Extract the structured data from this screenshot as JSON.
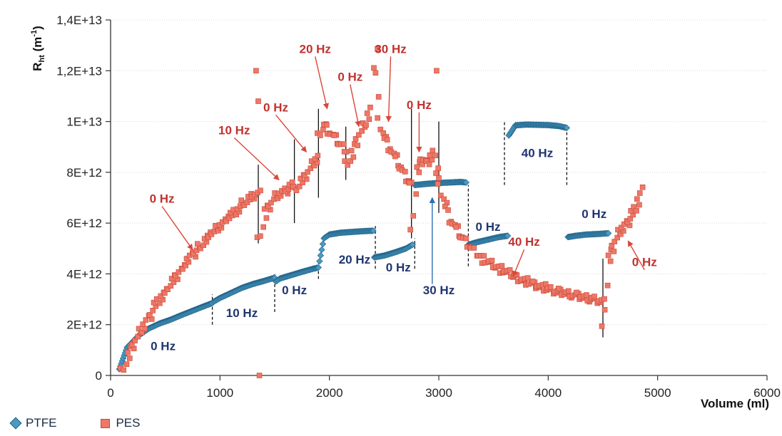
{
  "chart_data": {
    "type": "scatter",
    "xlabel": "Volume (ml)",
    "ylabel_main": "R",
    "ylabel_sub": "ht",
    "ylabel_unit_open": " (m",
    "ylabel_unit_sup": "-1",
    "ylabel_unit_close": ")",
    "xlim": [
      0,
      6000
    ],
    "ylim": [
      0,
      14000000000000.0
    ],
    "x_ticks": [
      0,
      1000,
      2000,
      3000,
      4000,
      5000,
      6000
    ],
    "x_tick_labels": [
      "0",
      "1000",
      "2000",
      "3000",
      "4000",
      "5000",
      "6000"
    ],
    "y_ticks": [
      0,
      2000000000000.0,
      4000000000000.0,
      6000000000000.0,
      8000000000000.0,
      10000000000000.0,
      12000000000000.0,
      14000000000000.0
    ],
    "y_tick_labels": [
      "0",
      "2E+12",
      "4E+12",
      "6E+12",
      "8E+12",
      "1E+13",
      "1,2E+13",
      "1,4E+13"
    ],
    "grid": "horizontal",
    "legend_position": "bottom-left",
    "series": [
      {
        "name": "PTFE",
        "marker": "diamond",
        "color": "#4a9bc4",
        "segments": [
          {
            "x": [
              80,
              150,
              250,
              350,
              450,
              550,
              650,
              750,
              850,
              930
            ],
            "y": [
              250000000000.0,
              1100000000000.0,
              1550000000000.0,
              1850000000000.0,
              2050000000000.0,
              2200000000000.0,
              2380000000000.0,
              2550000000000.0,
              2720000000000.0,
              2850000000000.0
            ]
          },
          {
            "x": [
              940,
              1000,
              1100,
              1200,
              1300,
              1400,
              1500
            ],
            "y": [
              2900000000000.0,
              3050000000000.0,
              3250000000000.0,
              3450000000000.0,
              3600000000000.0,
              3720000000000.0,
              3850000000000.0
            ]
          },
          {
            "x": [
              1510,
              1550,
              1650,
              1750,
              1850,
              1900
            ],
            "y": [
              3700000000000.0,
              3820000000000.0,
              3950000000000.0,
              4080000000000.0,
              4200000000000.0,
              4250000000000.0
            ]
          },
          {
            "x": [
              1910,
              1950,
              2000,
              2100,
              2200,
              2300,
              2400
            ],
            "y": [
              4500000000000.0,
              5400000000000.0,
              5550000000000.0,
              5620000000000.0,
              5650000000000.0,
              5680000000000.0,
              5700000000000.0
            ]
          },
          {
            "x": [
              2410,
              2500,
              2600,
              2700,
              2760
            ],
            "y": [
              4650000000000.0,
              4720000000000.0,
              4850000000000.0,
              5000000000000.0,
              5150000000000.0
            ]
          },
          {
            "x": [
              2780,
              2900,
              3000,
              3100,
              3200,
              3250
            ],
            "y": [
              7500000000000.0,
              7550000000000.0,
              7580000000000.0,
              7600000000000.0,
              7620000000000.0,
              7600000000000.0
            ]
          },
          {
            "x": [
              3270,
              3350,
              3450,
              3550,
              3630
            ],
            "y": [
              5150000000000.0,
              5250000000000.0,
              5350000000000.0,
              5450000000000.0,
              5500000000000.0
            ]
          },
          {
            "x": [
              3640,
              3700,
              3800,
              3900,
              4000,
              4100,
              4170
            ],
            "y": [
              9450000000000.0,
              9850000000000.0,
              9880000000000.0,
              9870000000000.0,
              9860000000000.0,
              9820000000000.0,
              9750000000000.0
            ]
          },
          {
            "x": [
              4180,
              4250,
              4350,
              4450,
              4550
            ],
            "y": [
              5450000000000.0,
              5500000000000.0,
              5550000000000.0,
              5570000000000.0,
              5600000000000.0
            ]
          }
        ]
      },
      {
        "name": "PES",
        "marker": "square",
        "color": "#ee7766",
        "segments": [
          {
            "x": [
              110,
              200,
              300,
              400,
              500,
              600,
              700,
              800,
              900,
              1000,
              1100,
              1200,
              1300,
              1350
            ],
            "y": [
              150000000000.0,
              1200000000000.0,
              1900000000000.0,
              2700000000000.0,
              3300000000000.0,
              3900000000000.0,
              4500000000000.0,
              5000000000000.0,
              5500000000000.0,
              5900000000000.0,
              6300000000000.0,
              6700000000000.0,
              7100000000000.0,
              7200000000000.0
            ]
          },
          {
            "x": [
              1360,
              1420,
              1500,
              1600,
              1680
            ],
            "y": [
              5300000000000.0,
              6500000000000.0,
              7000000000000.0,
              7300000000000.0,
              7500000000000.0
            ]
          },
          {
            "x": [
              1690,
              1750,
              1850,
              1900
            ],
            "y": [
              7300000000000.0,
              7700000000000.0,
              8300000000000.0,
              8600000000000.0
            ]
          },
          {
            "x": [
              1910,
              1950,
              2000,
              2100,
              2150
            ],
            "y": [
              9400000000000.0,
              9900000000000.0,
              9600000000000.0,
              9100000000000.0,
              8900000000000.0
            ]
          },
          {
            "x": [
              2160,
              2200,
              2260,
              2320,
              2380,
              2400,
              2420,
              2450
            ],
            "y": [
              8300000000000.0,
              8600000000000.0,
              9400000000000.0,
              9800000000000.0,
              10500000000000.0,
              12000000000000.0,
              13000000000000.0,
              11000000000000.0
            ]
          },
          {
            "x": [
              2460,
              2500,
              2600,
              2700,
              2750
            ],
            "y": [
              10000000000000.0,
              9400000000000.0,
              8600000000000.0,
              7800000000000.0,
              7500000000000.0
            ]
          },
          {
            "x": [
              2760,
              2800,
              2850,
              2900,
              2950,
              3000
            ],
            "y": [
              5600000000000.0,
              8000000000000.0,
              8600000000000.0,
              8300000000000.0,
              8800000000000.0,
              7800000000000.0
            ]
          },
          {
            "x": [
              3010,
              3100,
              3200,
              3300,
              3400,
              3600,
              3800,
              4000,
              4200,
              4400,
              4500
            ],
            "y": [
              7400000000000.0,
              6200000000000.0,
              5500000000000.0,
              5000000000000.0,
              4600000000000.0,
              4100000000000.0,
              3700000000000.0,
              3400000000000.0,
              3200000000000.0,
              3000000000000.0,
              2900000000000.0
            ]
          },
          {
            "x": [
              4510,
              4550,
              4600,
              4650,
              4700,
              4750,
              4800,
              4850
            ],
            "y": [
              1800000000000.0,
              4500000000000.0,
              5200000000000.0,
              5600000000000.0,
              5900000000000.0,
              6200000000000.0,
              6600000000000.0,
              7300000000000.0
            ]
          }
        ],
        "outliers": {
          "x": [
            1330,
            1350,
            2980,
            1360
          ],
          "y": [
            12000000000000.0,
            10800000000000.0,
            12000000000000.0,
            0
          ]
        }
      }
    ],
    "dividers": [
      {
        "x": 930,
        "y1": 2000000000000.0,
        "y2": 3200000000000.0,
        "style": "dashed"
      },
      {
        "x": 1500,
        "y1": 2500000000000.0,
        "y2": 4000000000000.0,
        "style": "dashed"
      },
      {
        "x": 1350,
        "y1": 5200000000000.0,
        "y2": 8300000000000.0,
        "style": "solid"
      },
      {
        "x": 1680,
        "y1": 6000000000000.0,
        "y2": 9300000000000.0,
        "style": "solid"
      },
      {
        "x": 1900,
        "y1": 7000000000000.0,
        "y2": 10500000000000.0,
        "style": "solid"
      },
      {
        "x": 1900,
        "y1": 3800000000000.0,
        "y2": 4500000000000.0,
        "style": "dashed"
      },
      {
        "x": 2150,
        "y1": 7700000000000.0,
        "y2": 9800000000000.0,
        "style": "solid"
      },
      {
        "x": 2420,
        "y1": 4200000000000.0,
        "y2": 5900000000000.0,
        "style": "dashed"
      },
      {
        "x": 2750,
        "y1": 5400000000000.0,
        "y2": 10500000000000.0,
        "style": "solid"
      },
      {
        "x": 2780,
        "y1": 4200000000000.0,
        "y2": 5400000000000.0,
        "style": "dashed"
      },
      {
        "x": 3000,
        "y1": 6400000000000.0,
        "y2": 10000000000000.0,
        "style": "solid"
      },
      {
        "x": 3270,
        "y1": 4300000000000.0,
        "y2": 7500000000000.0,
        "style": "dashed"
      },
      {
        "x": 3600,
        "y1": 7500000000000.0,
        "y2": 10000000000000.0,
        "style": "dashed"
      },
      {
        "x": 4170,
        "y1": 7500000000000.0,
        "y2": 9600000000000.0,
        "style": "dashed"
      },
      {
        "x": 4500,
        "y1": 1500000000000.0,
        "y2": 4600000000000.0,
        "style": "solid"
      }
    ],
    "annotations": [
      {
        "text": "0 Hz",
        "color": "#c0322e",
        "x": 470,
        "y": 6800000000000.0,
        "arrow_to": [
          750,
          4950000000000.0
        ]
      },
      {
        "text": "10 Hz",
        "color": "#c0322e",
        "x": 1130,
        "y": 9500000000000.0,
        "arrow_to": [
          1540,
          7700000000000.0
        ]
      },
      {
        "text": "0 Hz",
        "color": "#c0322e",
        "x": 1510,
        "y": 10400000000000.0,
        "arrow_to": [
          1790,
          8800000000000.0
        ]
      },
      {
        "text": "20 Hz",
        "color": "#c0322e",
        "x": 1870,
        "y": 12700000000000.0,
        "arrow_to": [
          1980,
          10500000000000.0
        ]
      },
      {
        "text": "0 Hz",
        "color": "#c0322e",
        "x": 2190,
        "y": 11600000000000.0,
        "arrow_to": [
          2270,
          9800000000000.0
        ]
      },
      {
        "text": "30 Hz",
        "color": "#c0322e",
        "x": 2560,
        "y": 12700000000000.0,
        "arrow_to": [
          2540,
          10000000000000.0
        ]
      },
      {
        "text": "0 Hz",
        "color": "#c0322e",
        "x": 2820,
        "y": 10500000000000.0,
        "arrow_to": [
          2820,
          8800000000000.0
        ]
      },
      {
        "text": "40 Hz",
        "color": "#c0322e",
        "x": 3780,
        "y": 5100000000000.0,
        "arrow_to": [
          3680,
          3900000000000.0
        ]
      },
      {
        "text": "0 Hz",
        "color": "#c0322e",
        "x": 4880,
        "y": 4300000000000.0,
        "arrow_to": [
          4730,
          5300000000000.0
        ]
      },
      {
        "text": "0 Hz",
        "color": "#1f3570",
        "x": 480,
        "y": 1000000000000.0
      },
      {
        "text": "10 Hz",
        "color": "#1f3570",
        "x": 1200,
        "y": 2300000000000.0
      },
      {
        "text": "0 Hz",
        "color": "#1f3570",
        "x": 1680,
        "y": 3200000000000.0
      },
      {
        "text": "20 Hz",
        "color": "#1f3570",
        "x": 2230,
        "y": 4400000000000.0
      },
      {
        "text": "0 Hz",
        "color": "#1f3570",
        "x": 2630,
        "y": 4100000000000.0
      },
      {
        "text": "30 Hz",
        "color": "#1f3570",
        "x": 3000,
        "y": 3200000000000.0,
        "arrow_from": [
          2940,
          3600000000000.0
        ],
        "arrow_to": [
          2940,
          7000000000000.0
        ]
      },
      {
        "text": "0 Hz",
        "color": "#1f3570",
        "x": 3450,
        "y": 5700000000000.0
      },
      {
        "text": "40 Hz",
        "color": "#1f3570",
        "x": 3900,
        "y": 8600000000000.0
      },
      {
        "text": "0 Hz",
        "color": "#1f3570",
        "x": 4420,
        "y": 6200000000000.0
      }
    ]
  }
}
